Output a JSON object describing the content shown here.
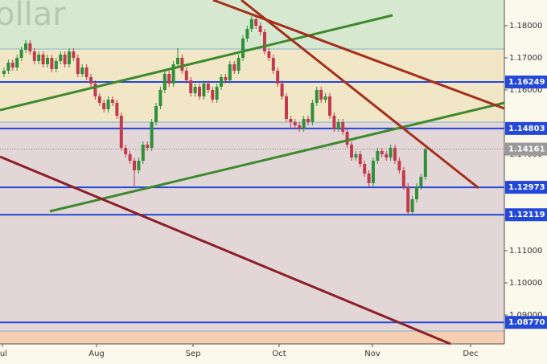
{
  "chart_data": {
    "type": "candlestick",
    "title": "ollar",
    "categories": [
      "Jul",
      "Aug",
      "Sep",
      "Oct",
      "Nov",
      "Dec"
    ],
    "ylim": [
      1.081,
      1.188
    ],
    "yticks": [
      {
        "value": 1.18,
        "label": "1.18000"
      },
      {
        "value": 1.17,
        "label": "1.17000"
      },
      {
        "value": 1.16,
        "label": "1.16000"
      },
      {
        "value": 1.14,
        "label": "1.14000"
      },
      {
        "value": 1.12,
        "label": "1.12000"
      },
      {
        "value": 1.11,
        "label": "1.11000"
      },
      {
        "value": 1.1,
        "label": "1.10000"
      },
      {
        "value": 1.09,
        "label": "1.09000"
      }
    ],
    "levels": [
      {
        "value": 1.16249,
        "label": "1.16249"
      },
      {
        "value": 1.14803,
        "label": "1.14803"
      },
      {
        "value": 1.12973,
        "label": "1.12973"
      },
      {
        "value": 1.12119,
        "label": "1.12119"
      },
      {
        "value": 1.0877,
        "label": "1.08770"
      }
    ],
    "current": {
      "value": 1.14161,
      "label": "1.14161"
    },
    "up_color": "#2f8f3a",
    "down_color": "#c23a4e",
    "level_color": "#2448d8",
    "open": [
      1.165,
      1.166,
      1.1685,
      1.167,
      1.17,
      1.1725,
      1.1745,
      1.172,
      1.169,
      1.171,
      1.168,
      1.17,
      1.1665,
      1.169,
      1.171,
      1.168,
      1.172,
      1.17,
      1.165,
      1.167,
      1.164,
      1.162,
      1.158,
      1.156,
      1.154,
      1.157,
      1.156,
      1.152,
      1.142,
      1.14,
      1.138,
      1.135,
      1.138,
      1.143,
      1.142,
      1.15,
      1.155,
      1.16,
      1.165,
      1.162,
      1.168,
      1.17,
      1.166,
      1.163,
      1.159,
      1.161,
      1.158,
      1.162,
      1.16,
      1.157,
      1.161,
      1.164,
      1.163,
      1.168,
      1.166,
      1.17,
      1.176,
      1.179,
      1.182,
      1.18,
      1.178,
      1.172,
      1.17,
      1.166,
      1.162,
      1.158,
      1.151,
      1.15,
      1.149,
      1.148,
      1.151,
      1.15,
      1.156,
      1.16,
      1.157,
      1.158,
      1.152,
      1.148,
      1.15,
      1.147,
      1.143,
      1.139,
      1.14,
      1.137,
      1.134,
      1.131,
      1.138,
      1.141,
      1.14,
      1.139,
      1.142,
      1.138,
      1.135,
      1.13,
      1.122,
      1.126,
      1.13,
      1.133
    ],
    "high": [
      1.167,
      1.1695,
      1.1695,
      1.171,
      1.1735,
      1.1755,
      1.1755,
      1.173,
      1.172,
      1.172,
      1.171,
      1.171,
      1.17,
      1.172,
      1.172,
      1.173,
      1.173,
      1.171,
      1.168,
      1.168,
      1.165,
      1.163,
      1.159,
      1.157,
      1.158,
      1.158,
      1.157,
      1.153,
      1.143,
      1.141,
      1.139,
      1.139,
      1.144,
      1.144,
      1.151,
      1.156,
      1.161,
      1.166,
      1.166,
      1.169,
      1.173,
      1.171,
      1.167,
      1.164,
      1.162,
      1.162,
      1.163,
      1.163,
      1.161,
      1.162,
      1.165,
      1.165,
      1.169,
      1.169,
      1.171,
      1.177,
      1.18,
      1.183,
      1.183,
      1.181,
      1.179,
      1.173,
      1.171,
      1.167,
      1.163,
      1.159,
      1.152,
      1.151,
      1.15,
      1.152,
      1.152,
      1.157,
      1.161,
      1.161,
      1.159,
      1.159,
      1.153,
      1.151,
      1.151,
      1.148,
      1.144,
      1.141,
      1.141,
      1.138,
      1.135,
      1.139,
      1.142,
      1.142,
      1.141,
      1.143,
      1.143,
      1.139,
      1.136,
      1.131,
      1.127,
      1.131,
      1.134,
      1.142
    ],
    "low": [
      1.164,
      1.165,
      1.166,
      1.166,
      1.169,
      1.1715,
      1.171,
      1.168,
      1.168,
      1.167,
      1.167,
      1.1655,
      1.1655,
      1.168,
      1.167,
      1.167,
      1.169,
      1.164,
      1.164,
      1.163,
      1.161,
      1.157,
      1.155,
      1.153,
      1.153,
      1.155,
      1.151,
      1.141,
      1.139,
      1.137,
      1.13,
      1.134,
      1.137,
      1.141,
      1.141,
      1.149,
      1.154,
      1.159,
      1.161,
      1.161,
      1.167,
      1.165,
      1.162,
      1.158,
      1.158,
      1.157,
      1.157,
      1.159,
      1.156,
      1.156,
      1.16,
      1.162,
      1.162,
      1.165,
      1.165,
      1.169,
      1.175,
      1.178,
      1.179,
      1.177,
      1.171,
      1.169,
      1.165,
      1.161,
      1.157,
      1.15,
      1.148,
      1.148,
      1.147,
      1.147,
      1.149,
      1.149,
      1.155,
      1.156,
      1.156,
      1.151,
      1.147,
      1.147,
      1.146,
      1.142,
      1.138,
      1.138,
      1.136,
      1.133,
      1.13,
      1.13,
      1.137,
      1.139,
      1.138,
      1.138,
      1.137,
      1.134,
      1.129,
      1.1212,
      1.1212,
      1.125,
      1.129,
      1.132
    ],
    "close": [
      1.166,
      1.1685,
      1.167,
      1.17,
      1.1725,
      1.1745,
      1.172,
      1.169,
      1.171,
      1.168,
      1.17,
      1.1665,
      1.169,
      1.171,
      1.168,
      1.172,
      1.17,
      1.165,
      1.167,
      1.164,
      1.162,
      1.158,
      1.156,
      1.154,
      1.157,
      1.156,
      1.152,
      1.142,
      1.14,
      1.138,
      1.135,
      1.138,
      1.143,
      1.142,
      1.15,
      1.155,
      1.16,
      1.165,
      1.162,
      1.168,
      1.17,
      1.166,
      1.163,
      1.159,
      1.161,
      1.158,
      1.162,
      1.16,
      1.157,
      1.161,
      1.164,
      1.163,
      1.168,
      1.166,
      1.17,
      1.176,
      1.179,
      1.182,
      1.18,
      1.178,
      1.172,
      1.17,
      1.166,
      1.162,
      1.158,
      1.151,
      1.15,
      1.149,
      1.148,
      1.151,
      1.15,
      1.156,
      1.16,
      1.157,
      1.158,
      1.152,
      1.148,
      1.15,
      1.147,
      1.143,
      1.139,
      1.14,
      1.137,
      1.134,
      1.131,
      1.138,
      1.141,
      1.14,
      1.139,
      1.142,
      1.138,
      1.135,
      1.13,
      1.122,
      1.126,
      1.13,
      1.133,
      1.1416
    ]
  }
}
